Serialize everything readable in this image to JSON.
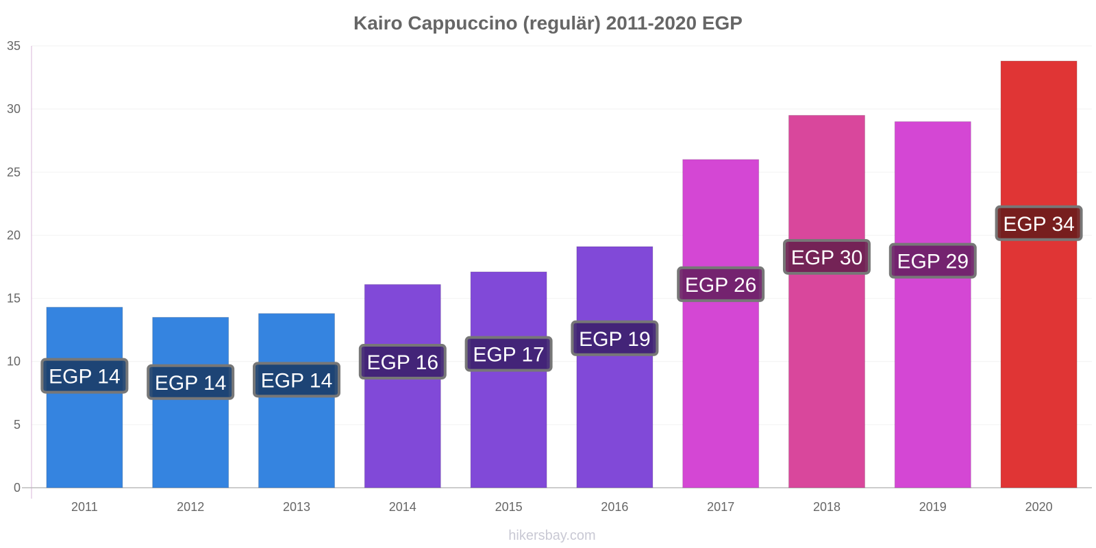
{
  "chart_data": {
    "type": "bar",
    "title": "Kairo Cappuccino (regulär) 2011-2020 EGP",
    "xlabel": "",
    "ylabel": "",
    "ylim": [
      0,
      35
    ],
    "yticks": [
      0,
      5,
      10,
      15,
      20,
      25,
      30,
      35
    ],
    "grid": true,
    "categories": [
      "2011",
      "2012",
      "2013",
      "2014",
      "2015",
      "2016",
      "2017",
      "2018",
      "2019",
      "2020"
    ],
    "values": [
      14.3,
      13.5,
      13.8,
      16.1,
      17.1,
      19.1,
      26.0,
      29.5,
      29.0,
      33.8
    ],
    "data_labels": [
      "EGP 14",
      "EGP 14",
      "EGP 14",
      "EGP 16",
      "EGP 17",
      "EGP 19",
      "EGP 26",
      "EGP 30",
      "EGP 29",
      "EGP 34"
    ],
    "colors": [
      "#3584e0",
      "#3584e0",
      "#3584e0",
      "#8149d8",
      "#8149d8",
      "#8149d8",
      "#d447d4",
      "#d9479c",
      "#d447d4",
      "#e03535"
    ],
    "label_bg_colors": [
      "#1b3f6b",
      "#1b3f6b",
      "#1b3f6b",
      "#3e2270",
      "#3e2270",
      "#3e2270",
      "#6b2166",
      "#6b2150",
      "#6b2166",
      "#6e1c1c"
    ]
  },
  "footer": {
    "watermark": "hikersbay.com"
  }
}
